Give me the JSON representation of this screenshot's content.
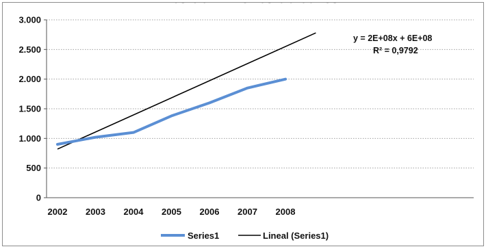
{
  "chart_data": {
    "type": "line",
    "title": "Miles de millones de euros",
    "xlabel": "",
    "ylabel": "",
    "categories": [
      "2002",
      "2003",
      "2004",
      "2005",
      "2006",
      "2007",
      "2008"
    ],
    "ylim": [
      0,
      3000
    ],
    "yticks": [
      0,
      500,
      1000,
      1500,
      2000,
      2500,
      3000
    ],
    "ytick_labels": [
      "0",
      "500",
      "1.000",
      "1.500",
      "2.000",
      "2.500",
      "3.000"
    ],
    "grid": true,
    "legend_position": "bottom",
    "series": [
      {
        "name": "Series1",
        "color": "#5b8fd4",
        "values": [
          900,
          1020,
          1100,
          1380,
          1600,
          1850,
          2000
        ]
      }
    ],
    "trendline": {
      "name": "Lineal (Series1)",
      "color": "#000000",
      "start": {
        "x": 2002,
        "y": 820
      },
      "end": {
        "x": 2008.8,
        "y": 2780
      },
      "equation": "y = 2E+08x + 6E+08",
      "r_squared": "R² = 0,9792"
    }
  }
}
